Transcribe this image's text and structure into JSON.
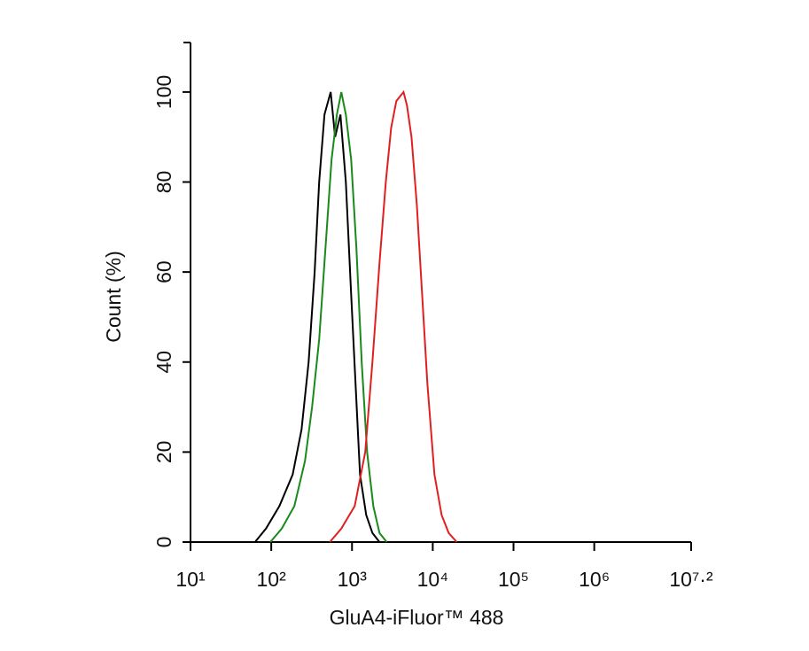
{
  "chart_data": {
    "type": "line",
    "x_label": "GluA4-iFluor™ 488",
    "y_label": "Count  (%)",
    "xscale": "log",
    "xlim": [
      10,
      15848932
    ],
    "ylim": [
      0,
      111
    ],
    "xticks": [
      {
        "value": 10,
        "label": "10¹"
      },
      {
        "value": 100,
        "label": "10²"
      },
      {
        "value": 1000,
        "label": "10³"
      },
      {
        "value": 10000,
        "label": "10⁴"
      },
      {
        "value": 100000,
        "label": "10⁵"
      },
      {
        "value": 1000000,
        "label": "10⁶"
      },
      {
        "value": 15848932,
        "label": "10⁷·²"
      }
    ],
    "yticks": [
      0,
      20,
      40,
      60,
      80,
      100
    ],
    "series": [
      {
        "color": "#000000",
        "x": [
          63,
          86,
          126,
          184,
          237,
          290,
          345,
          392,
          456,
          545,
          618,
          719,
          838,
          975,
          1107,
          1256,
          1500,
          1790,
          2190
        ],
        "values": [
          0,
          3,
          8,
          15,
          25,
          40,
          60,
          80,
          95,
          100,
          90,
          95,
          80,
          55,
          35,
          15,
          6,
          2,
          0
        ]
      },
      {
        "color": "#1a8a1a",
        "x": [
          97.5,
          135,
          193,
          262,
          320,
          392,
          468,
          558,
          650,
          738,
          838,
          975,
          1135,
          1320,
          1540,
          1837,
          2190,
          2690
        ],
        "values": [
          0,
          3,
          8,
          18,
          30,
          45,
          65,
          85,
          95,
          100,
          95,
          85,
          65,
          40,
          20,
          8,
          2,
          0
        ]
      },
      {
        "color": "#e02020",
        "x": [
          531,
          738,
          1080,
          1460,
          1790,
          2190,
          2620,
          3050,
          3540,
          3920,
          4340,
          4800,
          5450,
          6340,
          7380,
          8590,
          10500,
          12880,
          15780,
          19820
        ],
        "values": [
          0,
          3,
          8,
          20,
          40,
          62,
          80,
          92,
          98,
          99,
          100,
          97,
          90,
          75,
          55,
          35,
          15,
          6,
          2,
          0
        ]
      }
    ]
  }
}
